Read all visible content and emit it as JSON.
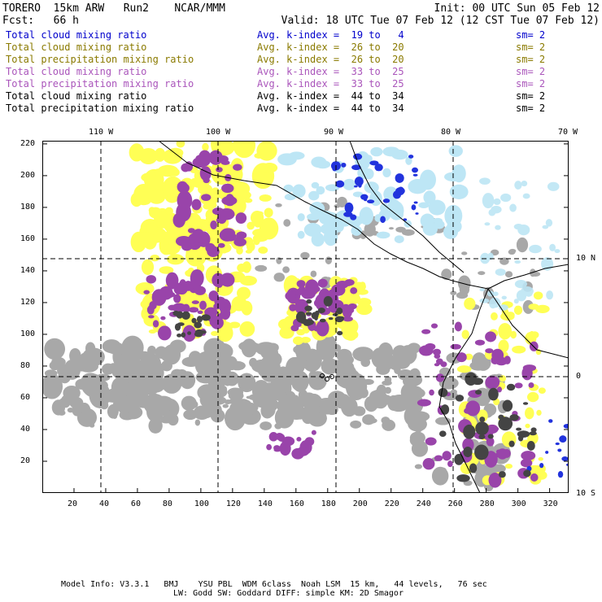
{
  "header": {
    "left_line1": "TORERO  15km ARW   Run2    NCAR/MMM",
    "right_line1": "Init: 00 UTC Sun 05 Feb 12",
    "left_line2": "Fcst:   66 h",
    "right_line2": "Valid: 18 UTC Tue 07 Feb 12 (12 CST Tue 07 Feb 12)"
  },
  "legend": [
    {
      "field": "Total cloud mixing ratio",
      "index": "Avg. k-index =  19 to   4",
      "sm": "sm= 2",
      "color": "#0000cc"
    },
    {
      "field": "Total cloud mixing ratio",
      "index": "Avg. k-index =  26 to  20",
      "sm": "sm= 2",
      "color": "#8a7a00"
    },
    {
      "field": "Total precipitation mixing ratio",
      "index": "Avg. k-index =  26 to  20",
      "sm": "sm= 2",
      "color": "#8a7a00"
    },
    {
      "field": "Total cloud mixing ratio",
      "index": "Avg. k-index =  33 to  25",
      "sm": "sm= 2",
      "color": "#aa55bb"
    },
    {
      "field": "Total precipitation mixing ratio",
      "index": "Avg. k-index =  33 to  25",
      "sm": "sm= 2",
      "color": "#aa55bb"
    },
    {
      "field": "Total cloud mixing ratio",
      "index": "Avg. k-index =  44 to  34",
      "sm": "sm= 2",
      "color": "#000000"
    },
    {
      "field": "Total precipitation mixing ratio",
      "index": "Avg. k-index =  44 to  34",
      "sm": "sm= 2",
      "color": "#000000"
    }
  ],
  "map": {
    "lon_labels": [
      "110 W",
      "100 W",
      "90 W",
      "80 W",
      "70 W"
    ],
    "lat_labels": [
      "10 N",
      "0",
      "10 S"
    ],
    "x_grid": [
      20,
      40,
      60,
      80,
      100,
      120,
      140,
      160,
      180,
      200,
      220,
      240,
      260,
      280,
      300,
      320
    ],
    "y_grid": [
      20,
      40,
      60,
      80,
      100,
      120,
      140,
      160,
      180,
      200,
      220
    ],
    "x_range": [
      0,
      332
    ],
    "y_range": [
      0,
      222
    ]
  },
  "colors": {
    "gray": "#a8a8a8",
    "dark": "#444444",
    "yellow": "#ffff55",
    "purple": "#9944aa",
    "blue": "#2233dd",
    "light_blue": "#bde6f5"
  },
  "footer": {
    "line1": "Model Info: V3.3.1   BMJ    YSU PBL  WDM 6class  Noah LSM  15 km,   44 levels,   76 sec",
    "line2": "LW: Godd SW: Goddard DIFF: simple KM: 2D Smagor"
  }
}
